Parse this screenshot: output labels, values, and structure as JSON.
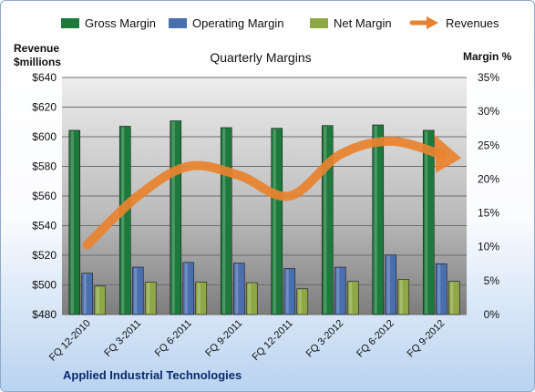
{
  "chart_data": {
    "type": "bar",
    "title": "Quarterly Margins",
    "company": "Applied Industrial Technologies",
    "left_axis_label_line1": "Revenue",
    "left_axis_label_line2": "$millions",
    "right_axis_label": "Margin %",
    "categories": [
      "FQ 12-2010",
      "FQ 3-2011",
      "FQ 6-2011",
      "FQ 9-2011",
      "FQ 12-2011",
      "FQ 3-2012",
      "FQ 6-2012",
      "FQ 9-2012"
    ],
    "left_ylim": [
      480,
      640
    ],
    "left_ticks": [
      "$480",
      "$500",
      "$520",
      "$540",
      "$560",
      "$580",
      "$600",
      "$620",
      "$640"
    ],
    "right_ylim": [
      0,
      35
    ],
    "right_ticks": [
      "0%",
      "5%",
      "10%",
      "15%",
      "20%",
      "25%",
      "30%",
      "35%"
    ],
    "grid": true,
    "legend_position": "top",
    "series": [
      {
        "name": "Gross Margin",
        "type": "bar",
        "axis": "right",
        "color": "#1e7a3c",
        "values": [
          27.2,
          27.8,
          28.6,
          27.6,
          27.5,
          27.9,
          28.0,
          27.2
        ]
      },
      {
        "name": "Operating Margin",
        "type": "bar",
        "axis": "right",
        "color": "#4a6fae",
        "values": [
          6.1,
          7.0,
          7.7,
          7.6,
          6.8,
          7.0,
          8.8,
          7.5
        ]
      },
      {
        "name": "Net Margin",
        "type": "bar",
        "axis": "right",
        "color": "#8fa846",
        "values": [
          4.2,
          4.8,
          4.8,
          4.7,
          3.8,
          4.9,
          5.2,
          4.9
        ]
      },
      {
        "name": "Revenues",
        "type": "line",
        "axis": "left",
        "color": "#e8822e",
        "values": [
          527,
          560,
          580,
          574,
          560,
          588,
          597,
          588
        ]
      }
    ]
  }
}
